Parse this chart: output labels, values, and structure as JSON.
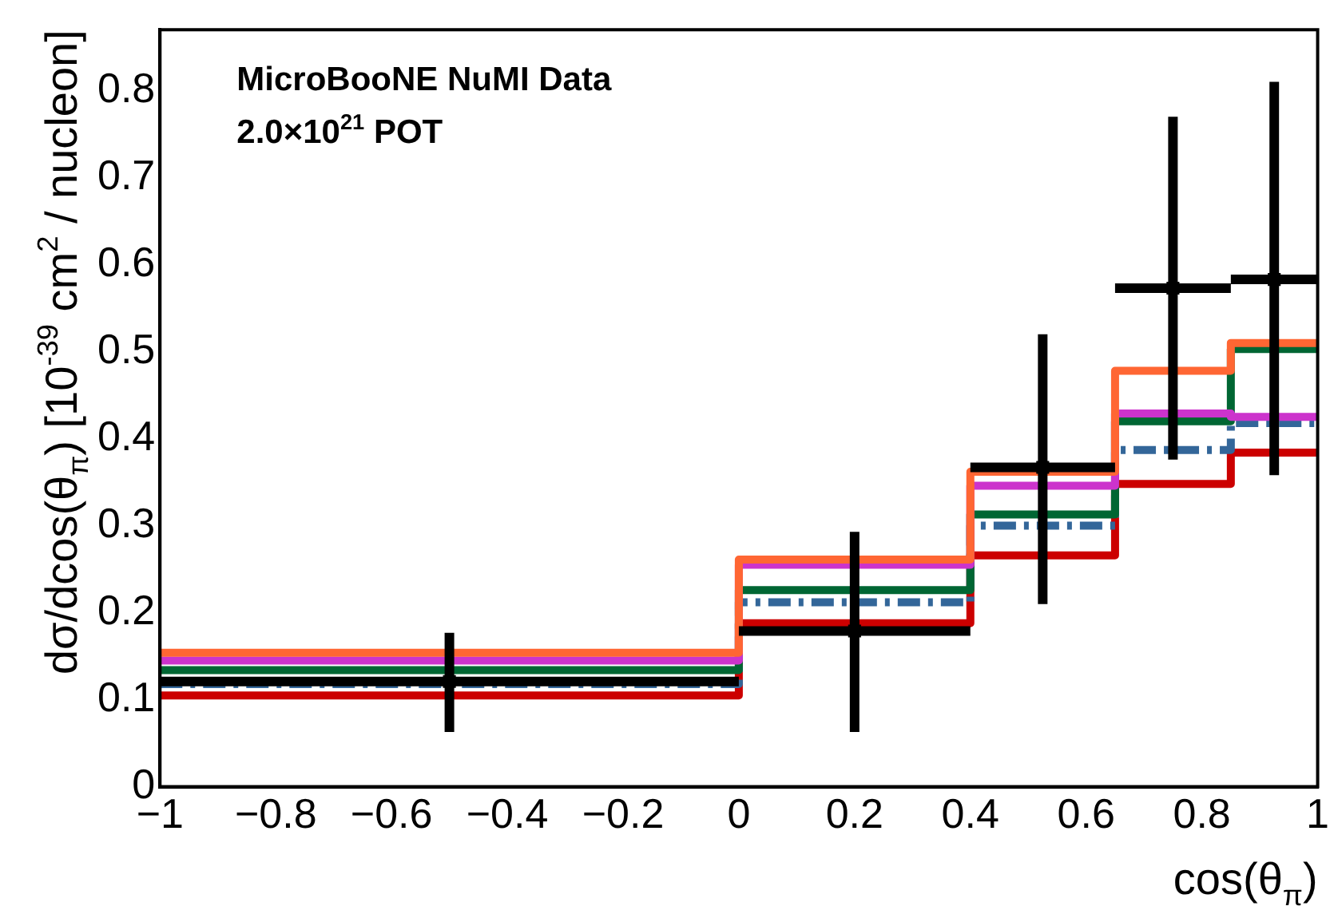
{
  "chart_data": {
    "type": "histogram",
    "xlabel": "cos(θ$_{π}$)",
    "ylabel": "dσ/dcos(θ$_{π}$) [10$^{-39}$ cm$^{2}$ / nucleon]",
    "annotations": [
      "MicroBooNE NuMI Data",
      "2.0×10$^{21}$ POT"
    ],
    "bins": [
      -1,
      0,
      0.4,
      0.65,
      0.85,
      1
    ],
    "series": [
      {
        "color": "#ff6633",
        "values": [
          0.154,
          0.261,
          0.362,
          0.478,
          0.51
        ]
      },
      {
        "color": "#cc33cc",
        "values": [
          0.145,
          0.255,
          0.346,
          0.429,
          0.425
        ]
      },
      {
        "color": "#006633",
        "values": [
          0.134,
          0.226,
          0.313,
          0.42,
          0.503
        ]
      },
      {
        "color": "#336699",
        "line_style": "dashed",
        "values": [
          0.118,
          0.212,
          0.3,
          0.387,
          0.418
        ]
      },
      {
        "color": "#cc0000",
        "values": [
          0.105,
          0.188,
          0.266,
          0.348,
          0.384
        ]
      },
      {
        "type": "scatter",
        "color": "#000000",
        "marker": "square",
        "x": [
          -0.5,
          0.2,
          0.525,
          0.75,
          0.925
        ],
        "values": [
          0.121,
          0.179,
          0.367,
          0.573,
          0.583
        ],
        "errors": [
          [
            0.063,
            0.177
          ],
          [
            0.063,
            0.293
          ],
          [
            0.21,
            0.52
          ],
          [
            0.376,
            0.77
          ],
          [
            0.358,
            0.81
          ]
        ],
        "xerrors": [
          [
            -1,
            0
          ],
          [
            0,
            0.4
          ],
          [
            0.4,
            0.65
          ],
          [
            0.65,
            0.85
          ],
          [
            0.85,
            1
          ]
        ]
      }
    ],
    "xlim": [
      -1,
      1
    ],
    "xticks": [
      {
        "value": -1,
        "label": "−1"
      },
      {
        "value": -0.8,
        "label": "−0.8"
      },
      {
        "value": -0.6,
        "label": "−0.6"
      },
      {
        "value": -0.4,
        "label": "−0.4"
      },
      {
        "value": -0.2,
        "label": "−0.2"
      },
      0,
      0.2,
      0.4,
      0.6,
      0.8,
      1
    ],
    "ylim": [
      0,
      0.87
    ],
    "yticks": [
      0,
      0.1,
      0.2,
      0.3,
      0.4,
      0.5,
      0.6,
      0.7,
      0.8
    ],
    "grid": false,
    "legend": false
  }
}
